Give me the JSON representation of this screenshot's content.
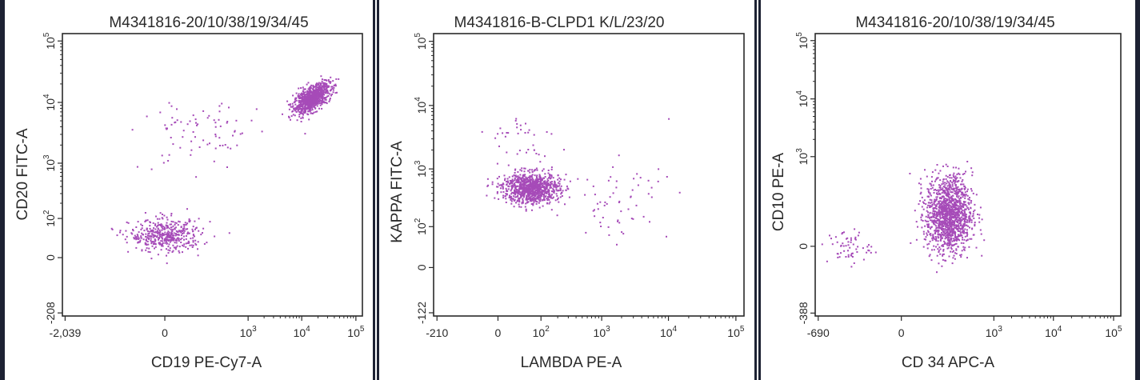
{
  "chart_data": [
    {
      "type": "scatter",
      "title": "M4341816-20/10/38/19/34/45",
      "xlabel": "CD19 PE-Cy7-A",
      "ylabel": "CD20 FITC-A",
      "color": "#a64bb8",
      "x_ticks": [
        {
          "label": "-2,039",
          "value": -2039,
          "exp": ""
        },
        {
          "label": "0",
          "value": 0,
          "exp": ""
        },
        {
          "label": "10",
          "value": 1000,
          "exp": "3"
        },
        {
          "label": "10",
          "value": 10000,
          "exp": "4"
        },
        {
          "label": "10",
          "value": 100000,
          "exp": "5"
        }
      ],
      "y_ticks": [
        {
          "label": "-208",
          "value": -208,
          "exp": ""
        },
        {
          "label": "0",
          "value": 0,
          "exp": ""
        },
        {
          "label": "10",
          "value": 100,
          "exp": "2"
        },
        {
          "label": "10",
          "value": 1000,
          "exp": "3"
        },
        {
          "label": "10",
          "value": 10000,
          "exp": "4"
        },
        {
          "label": "10",
          "value": 100000,
          "exp": "5"
        }
      ],
      "clusters": [
        {
          "n": 900,
          "x_center": 15000,
          "y_center": 12000,
          "x_spread_decades": 0.28,
          "y_spread_decades": 0.16,
          "tilt": 0.45
        },
        {
          "n": 450,
          "x_center": 0,
          "y_center": 40,
          "x_spread_decades": 0.55,
          "y_spread_decades": 0.22,
          "tilt": 0.0
        },
        {
          "n": 80,
          "x_center": 100,
          "y_center": 3000,
          "x_spread_decades": 0.9,
          "y_spread_decades": 0.5,
          "tilt": 0.0
        }
      ]
    },
    {
      "type": "scatter",
      "title": "M4341816-B-CLPD1  K/L/23/20",
      "xlabel": "LAMBDA PE-A",
      "ylabel": "KAPPA FITC-A",
      "color": "#a64bb8",
      "x_ticks": [
        {
          "label": "-210",
          "value": -210,
          "exp": ""
        },
        {
          "label": "0",
          "value": 0,
          "exp": ""
        },
        {
          "label": "10",
          "value": 100,
          "exp": "2"
        },
        {
          "label": "10",
          "value": 1000,
          "exp": "3"
        },
        {
          "label": "10",
          "value": 10000,
          "exp": "4"
        },
        {
          "label": "10",
          "value": 100000,
          "exp": "5"
        }
      ],
      "y_ticks": [
        {
          "label": "-122",
          "value": -122,
          "exp": ""
        },
        {
          "label": "0",
          "value": 0,
          "exp": ""
        },
        {
          "label": "10",
          "value": 100,
          "exp": "2"
        },
        {
          "label": "10",
          "value": 1000,
          "exp": "3"
        },
        {
          "label": "10",
          "value": 10000,
          "exp": "4"
        },
        {
          "label": "10",
          "value": 100000,
          "exp": "5"
        }
      ],
      "clusters": [
        {
          "n": 950,
          "x_center": 60,
          "y_center": 500,
          "x_spread_decades": 0.35,
          "y_spread_decades": 0.2,
          "tilt": 0.0
        },
        {
          "n": 60,
          "x_center": 2000,
          "y_center": 300,
          "x_spread_decades": 0.6,
          "y_spread_decades": 0.5,
          "tilt": 0.0
        },
        {
          "n": 40,
          "x_center": 30,
          "y_center": 3000,
          "x_spread_decades": 0.5,
          "y_spread_decades": 0.4,
          "tilt": 0.0
        }
      ]
    },
    {
      "type": "scatter",
      "title": "M4341816-20/10/38/19/34/45",
      "xlabel": "CD 34 APC-A",
      "ylabel": "CD10 PE-A",
      "color": "#a64bb8",
      "x_ticks": [
        {
          "label": "-690",
          "value": -690,
          "exp": ""
        },
        {
          "label": "0",
          "value": 0,
          "exp": ""
        },
        {
          "label": "10",
          "value": 1000,
          "exp": "3"
        },
        {
          "label": "10",
          "value": 10000,
          "exp": "4"
        },
        {
          "label": "10",
          "value": 100000,
          "exp": "5"
        }
      ],
      "y_ticks": [
        {
          "label": "-388",
          "value": -388,
          "exp": ""
        },
        {
          "label": "0",
          "value": 0,
          "exp": ""
        },
        {
          "label": "10",
          "value": 1000,
          "exp": "3"
        },
        {
          "label": "10",
          "value": 10000,
          "exp": "4"
        },
        {
          "label": "10",
          "value": 100000,
          "exp": "5"
        }
      ],
      "clusters": [
        {
          "n": 1300,
          "x_center": 150,
          "y_center": 80,
          "x_spread_decades": 0.32,
          "y_spread_decades": 0.55,
          "tilt": 0.0
        },
        {
          "n": 60,
          "x_center": -200,
          "y_center": 0,
          "x_spread_decades": 0.3,
          "y_spread_decades": 0.25,
          "tilt": 0.0
        }
      ]
    }
  ]
}
